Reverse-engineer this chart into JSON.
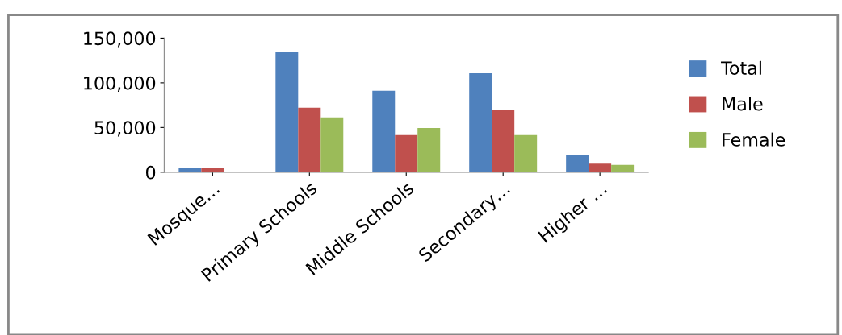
{
  "chart_data": {
    "type": "bar",
    "categories": [
      "Mosque…",
      "Primary Schools",
      "Middle Schools",
      "Secondary…",
      "Higher …"
    ],
    "series": [
      {
        "name": "Total",
        "color": "#4f81bd",
        "values": [
          4600,
          134400,
          91000,
          110700,
          18700
        ]
      },
      {
        "name": "Male",
        "color": "#c0504d",
        "values": [
          4600,
          72200,
          41600,
          69500,
          9600
        ]
      },
      {
        "name": "Female",
        "color": "#9bbb59",
        "values": [
          0,
          61300,
          49400,
          41600,
          8200
        ]
      }
    ],
    "ylim": [
      0,
      150000
    ],
    "yticks": [
      {
        "value": 0,
        "label": "0"
      },
      {
        "value": 50000,
        "label": "50,000"
      },
      {
        "value": 100000,
        "label": "100,000"
      },
      {
        "value": 150000,
        "label": "150,000"
      }
    ],
    "grid": false,
    "legend": "right"
  }
}
